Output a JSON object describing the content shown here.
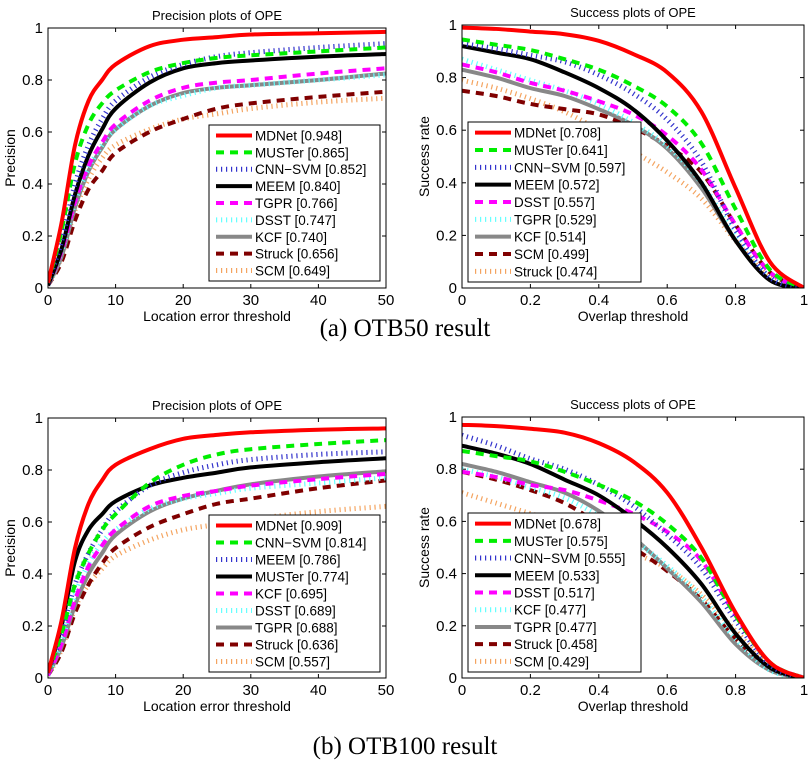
{
  "captions": [
    "(a) OTB50 result",
    "(b) OTB100 result"
  ],
  "style": {
    "rank_colors": [
      "#ff0000",
      "#00ee00",
      "#3333cc",
      "#000000",
      "#ff00ff",
      "#66ffff",
      "#888888",
      "#800000",
      "#f4a460"
    ],
    "rank_styles": [
      "solid",
      "dashed",
      "dotted",
      "solid",
      "dashed",
      "dotted",
      "solid",
      "dashed",
      "dotted"
    ]
  },
  "chart_data": [
    {
      "type": "line",
      "group": "OTB50",
      "title": "Precision plots of OPE",
      "xlabel": "Location error threshold",
      "ylabel": "Precision",
      "xlim": [
        0,
        50
      ],
      "ylim": [
        0,
        1
      ],
      "legend": "lower-right",
      "xticks": [
        "0",
        "10",
        "20",
        "30",
        "40",
        "50"
      ],
      "yticks": [
        "0",
        "0.2",
        "0.4",
        "0.6",
        "0.8",
        "1"
      ],
      "x": [
        0,
        2,
        4,
        6,
        8,
        10,
        15,
        20,
        25,
        30,
        40,
        50
      ],
      "series": [
        {
          "name": "MDNet [0.948]",
          "values": [
            0.02,
            0.25,
            0.55,
            0.72,
            0.8,
            0.86,
            0.93,
            0.955,
            0.965,
            0.975,
            0.98,
            0.985
          ]
        },
        {
          "name": "MUSTer [0.865]",
          "values": [
            0.02,
            0.22,
            0.48,
            0.63,
            0.71,
            0.76,
            0.83,
            0.865,
            0.885,
            0.895,
            0.91,
            0.925
          ]
        },
        {
          "name": "CNN−SVM [0.852]",
          "values": [
            0.02,
            0.18,
            0.4,
            0.55,
            0.65,
            0.72,
            0.81,
            0.86,
            0.89,
            0.905,
            0.925,
            0.94
          ]
        },
        {
          "name": "MEEM [0.840]",
          "values": [
            0.01,
            0.15,
            0.36,
            0.51,
            0.61,
            0.69,
            0.79,
            0.845,
            0.865,
            0.875,
            0.89,
            0.9
          ]
        },
        {
          "name": "TGPR [0.766]",
          "values": [
            0.01,
            0.14,
            0.33,
            0.47,
            0.56,
            0.63,
            0.72,
            0.77,
            0.79,
            0.8,
            0.825,
            0.845
          ]
        },
        {
          "name": "DSST [0.747]",
          "values": [
            0.01,
            0.14,
            0.33,
            0.46,
            0.55,
            0.61,
            0.7,
            0.74,
            0.77,
            0.78,
            0.8,
            0.82
          ]
        },
        {
          "name": "KCF [0.740]",
          "values": [
            0.01,
            0.12,
            0.31,
            0.45,
            0.54,
            0.61,
            0.7,
            0.75,
            0.77,
            0.78,
            0.8,
            0.825
          ]
        },
        {
          "name": "Struck [0.656]",
          "values": [
            0.01,
            0.1,
            0.26,
            0.38,
            0.45,
            0.52,
            0.6,
            0.65,
            0.69,
            0.71,
            0.735,
            0.755
          ]
        },
        {
          "name": "SCM [0.649]",
          "values": [
            0.01,
            0.12,
            0.3,
            0.42,
            0.5,
            0.55,
            0.61,
            0.65,
            0.67,
            0.69,
            0.715,
            0.73
          ]
        }
      ]
    },
    {
      "type": "line",
      "group": "OTB50",
      "title": "Success plots of OPE",
      "xlabel": "Overlap threshold",
      "ylabel": "Success rate",
      "xlim": [
        0,
        1
      ],
      "ylim": [
        0,
        1
      ],
      "legend": "lower-left",
      "xticks": [
        "0",
        "0.2",
        "0.4",
        "0.6",
        "0.8",
        "1"
      ],
      "yticks": [
        "0",
        "0.2",
        "0.4",
        "0.6",
        "0.8",
        "1"
      ],
      "x": [
        0,
        0.1,
        0.2,
        0.3,
        0.4,
        0.5,
        0.6,
        0.7,
        0.8,
        0.9,
        1.0
      ],
      "series": [
        {
          "name": "MDNet [0.708]",
          "values": [
            0.99,
            0.985,
            0.975,
            0.965,
            0.94,
            0.89,
            0.82,
            0.67,
            0.38,
            0.1,
            0.0
          ]
        },
        {
          "name": "MUSTer [0.641]",
          "values": [
            0.945,
            0.925,
            0.905,
            0.87,
            0.83,
            0.77,
            0.69,
            0.55,
            0.3,
            0.07,
            0.0
          ]
        },
        {
          "name": "CNN−SVM [0.597]",
          "values": [
            0.93,
            0.91,
            0.885,
            0.86,
            0.81,
            0.74,
            0.64,
            0.48,
            0.22,
            0.04,
            0.0
          ]
        },
        {
          "name": "MEEM [0.572]",
          "values": [
            0.92,
            0.895,
            0.87,
            0.82,
            0.76,
            0.68,
            0.56,
            0.4,
            0.18,
            0.03,
            0.0
          ]
        },
        {
          "name": "DSST [0.557]",
          "values": [
            0.85,
            0.82,
            0.78,
            0.75,
            0.71,
            0.66,
            0.58,
            0.45,
            0.24,
            0.06,
            0.0
          ]
        },
        {
          "name": "TGPR [0.529]",
          "values": [
            0.87,
            0.83,
            0.79,
            0.75,
            0.7,
            0.63,
            0.54,
            0.4,
            0.2,
            0.04,
            0.0
          ]
        },
        {
          "name": "KCF [0.514]",
          "values": [
            0.83,
            0.8,
            0.76,
            0.73,
            0.68,
            0.62,
            0.53,
            0.38,
            0.18,
            0.03,
            0.0
          ]
        },
        {
          "name": "SCM [0.499]",
          "values": [
            0.75,
            0.73,
            0.7,
            0.68,
            0.66,
            0.61,
            0.54,
            0.44,
            0.24,
            0.06,
            0.0
          ]
        },
        {
          "name": "Struck [0.474]",
          "values": [
            0.79,
            0.76,
            0.72,
            0.67,
            0.6,
            0.52,
            0.44,
            0.34,
            0.18,
            0.04,
            0.0
          ]
        }
      ]
    },
    {
      "type": "line",
      "group": "OTB100",
      "title": "Precision plots of OPE",
      "xlabel": "Location error threshold",
      "ylabel": "Precision",
      "xlim": [
        0,
        50
      ],
      "ylim": [
        0,
        1
      ],
      "legend": "lower-right",
      "xticks": [
        "0",
        "10",
        "20",
        "30",
        "40",
        "50"
      ],
      "yticks": [
        "0",
        "0.2",
        "0.4",
        "0.6",
        "0.8",
        "1"
      ],
      "x": [
        0,
        2,
        4,
        6,
        8,
        10,
        15,
        20,
        25,
        30,
        40,
        50
      ],
      "series": [
        {
          "name": "MDNet [0.909]",
          "values": [
            0.02,
            0.22,
            0.5,
            0.67,
            0.76,
            0.82,
            0.88,
            0.92,
            0.935,
            0.945,
            0.955,
            0.96
          ]
        },
        {
          "name": "CNN−SVM [0.814]",
          "values": [
            0.02,
            0.17,
            0.36,
            0.48,
            0.57,
            0.63,
            0.75,
            0.82,
            0.86,
            0.88,
            0.9,
            0.915
          ]
        },
        {
          "name": "MEEM [0.786]",
          "values": [
            0.02,
            0.17,
            0.36,
            0.48,
            0.57,
            0.64,
            0.74,
            0.79,
            0.82,
            0.84,
            0.86,
            0.87
          ]
        },
        {
          "name": "MUSTer [0.774]",
          "values": [
            0.02,
            0.2,
            0.45,
            0.57,
            0.63,
            0.68,
            0.74,
            0.77,
            0.79,
            0.81,
            0.83,
            0.845
          ]
        },
        {
          "name": "KCF [0.695]",
          "values": [
            0.01,
            0.13,
            0.3,
            0.43,
            0.51,
            0.57,
            0.66,
            0.7,
            0.72,
            0.74,
            0.765,
            0.785
          ]
        },
        {
          "name": "DSST [0.689]",
          "values": [
            0.01,
            0.14,
            0.32,
            0.44,
            0.52,
            0.57,
            0.65,
            0.69,
            0.71,
            0.73,
            0.75,
            0.77
          ]
        },
        {
          "name": "TGPR [0.688]",
          "values": [
            0.01,
            0.12,
            0.28,
            0.4,
            0.48,
            0.55,
            0.64,
            0.69,
            0.72,
            0.745,
            0.775,
            0.795
          ]
        },
        {
          "name": "Struck [0.636]",
          "values": [
            0.01,
            0.1,
            0.25,
            0.36,
            0.44,
            0.5,
            0.58,
            0.63,
            0.67,
            0.69,
            0.73,
            0.76
          ]
        },
        {
          "name": "SCM [0.557]",
          "values": [
            0.01,
            0.11,
            0.27,
            0.36,
            0.42,
            0.47,
            0.53,
            0.57,
            0.59,
            0.61,
            0.64,
            0.66
          ]
        }
      ]
    },
    {
      "type": "line",
      "group": "OTB100",
      "title": "Success plots of OPE",
      "xlabel": "Overlap threshold",
      "ylabel": "Success rate",
      "xlim": [
        0,
        1
      ],
      "ylim": [
        0,
        1
      ],
      "legend": "lower-left",
      "xticks": [
        "0",
        "0.2",
        "0.4",
        "0.6",
        "0.8",
        "1"
      ],
      "yticks": [
        "0",
        "0.2",
        "0.4",
        "0.6",
        "0.8",
        "1"
      ],
      "x": [
        0,
        0.1,
        0.2,
        0.3,
        0.4,
        0.5,
        0.6,
        0.7,
        0.8,
        0.9,
        1.0
      ],
      "series": [
        {
          "name": "MDNet [0.678]",
          "values": [
            0.97,
            0.965,
            0.955,
            0.94,
            0.9,
            0.83,
            0.71,
            0.5,
            0.25,
            0.06,
            0.0
          ]
        },
        {
          "name": "MUSTer [0.575]",
          "values": [
            0.87,
            0.85,
            0.83,
            0.79,
            0.74,
            0.68,
            0.59,
            0.46,
            0.24,
            0.06,
            0.0
          ]
        },
        {
          "name": "CNN−SVM [0.555]",
          "values": [
            0.93,
            0.89,
            0.84,
            0.8,
            0.74,
            0.66,
            0.55,
            0.42,
            0.22,
            0.05,
            0.0
          ]
        },
        {
          "name": "MEEM [0.533]",
          "values": [
            0.89,
            0.86,
            0.82,
            0.76,
            0.7,
            0.61,
            0.5,
            0.36,
            0.17,
            0.04,
            0.0
          ]
        },
        {
          "name": "DSST [0.517]",
          "values": [
            0.79,
            0.77,
            0.74,
            0.72,
            0.68,
            0.63,
            0.56,
            0.45,
            0.24,
            0.06,
            0.0
          ]
        },
        {
          "name": "KCF [0.477]",
          "values": [
            0.8,
            0.77,
            0.73,
            0.69,
            0.62,
            0.53,
            0.43,
            0.31,
            0.15,
            0.03,
            0.0
          ]
        },
        {
          "name": "TGPR [0.477]",
          "values": [
            0.82,
            0.79,
            0.75,
            0.71,
            0.64,
            0.54,
            0.42,
            0.29,
            0.13,
            0.03,
            0.0
          ]
        },
        {
          "name": "Struck [0.458]",
          "values": [
            0.79,
            0.76,
            0.72,
            0.67,
            0.59,
            0.5,
            0.41,
            0.3,
            0.15,
            0.04,
            0.0
          ]
        },
        {
          "name": "SCM [0.429]",
          "values": [
            0.71,
            0.67,
            0.63,
            0.59,
            0.54,
            0.48,
            0.42,
            0.32,
            0.18,
            0.05,
            0.0
          ]
        }
      ]
    }
  ]
}
